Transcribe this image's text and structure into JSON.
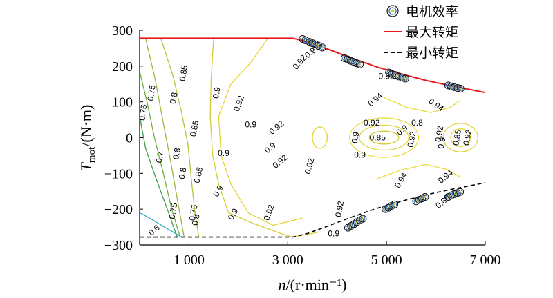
{
  "chart_data": {
    "type": "line",
    "title": "",
    "xlabel": "n/(r·min⁻¹)",
    "ylabel": "Tmot/(N·m)",
    "xlim": [
      0,
      7000
    ],
    "ylim": [
      -300,
      300
    ],
    "x_ticks": [
      {
        "value": 1000,
        "label": "1 000"
      },
      {
        "value": 3000,
        "label": "3 000"
      },
      {
        "value": 5000,
        "label": "5 000"
      },
      {
        "value": 7000,
        "label": "7 000"
      }
    ],
    "y_ticks": [
      {
        "value": 300,
        "label": "300"
      },
      {
        "value": 200,
        "label": "200"
      },
      {
        "value": 100,
        "label": "100"
      },
      {
        "value": 0,
        "label": "0"
      },
      {
        "value": -100,
        "label": "−100"
      },
      {
        "value": -200,
        "label": "−200"
      },
      {
        "value": -300,
        "label": "−300"
      }
    ],
    "legend": {
      "placement": "top-right",
      "entries": [
        {
          "label": "电机效率",
          "kind": "marker",
          "color": "#2b6fb3"
        },
        {
          "label": "最大转矩",
          "kind": "solid",
          "color": "#e8191c"
        },
        {
          "label": "最小转矩",
          "kind": "dashed",
          "color": "#000000"
        }
      ]
    },
    "max_torque": {
      "name": "最大转矩",
      "color": "#e8191c",
      "x": [
        0,
        3100,
        3400,
        3800,
        4300,
        4800,
        5300,
        5800,
        6300,
        7000
      ],
      "y": [
        278,
        278,
        268,
        248,
        222,
        198,
        178,
        160,
        145,
        126
      ]
    },
    "min_torque": {
      "name": "最小转矩",
      "color": "#000000",
      "x": [
        0,
        3100,
        3400,
        3800,
        4300,
        4800,
        5300,
        5800,
        6300,
        7000
      ],
      "y": [
        -278,
        -278,
        -268,
        -248,
        -222,
        -198,
        -178,
        -160,
        -145,
        -126
      ]
    },
    "efficiency_contours": [
      {
        "level": 0.6,
        "color": "#2ea5c8",
        "x": [
          0,
          200,
          500,
          850
        ],
        "y": [
          -210,
          -225,
          -250,
          -278
        ]
      },
      {
        "level": 0.7,
        "color": "#3c9d4f",
        "x": [
          0,
          120,
          320,
          560,
          760
        ],
        "y": [
          60,
          -30,
          -110,
          -200,
          -278
        ]
      },
      {
        "level": 0.75,
        "color": "#6fae3c",
        "x": [
          0,
          150,
          300,
          480,
          650,
          820
        ],
        "y": [
          185,
          100,
          0,
          -100,
          -200,
          -278
        ]
      },
      {
        "level": 0.8,
        "color": "#97b93a",
        "x": [
          120,
          320,
          480,
          620,
          760,
          900
        ],
        "y": [
          278,
          160,
          40,
          -60,
          -170,
          -278
        ]
      },
      {
        "level": 0.85,
        "color": "#b9c33a",
        "x": [
          430,
          680,
          850,
          980,
          1050,
          1120,
          1200
        ],
        "y": [
          278,
          170,
          70,
          -20,
          -120,
          -210,
          -278
        ]
      },
      {
        "level": 0.9,
        "color": "#d4cc33",
        "x": [
          1500,
          1450,
          1430,
          1480,
          1600,
          1800,
          2300,
          2900,
          3100,
          3600
        ],
        "y": [
          278,
          170,
          60,
          -50,
          -130,
          -210,
          -240,
          -270,
          -278,
          -265
        ]
      },
      {
        "level": 0.92,
        "color": "#e5d432",
        "x": [
          2600,
          2250,
          1850,
          1600,
          1650,
          1850,
          2200,
          2700,
          3300
        ],
        "y": [
          278,
          210,
          150,
          60,
          -50,
          -130,
          -210,
          -245,
          -225
        ]
      },
      {
        "level": 0.94,
        "color": "#ecdb38",
        "x": [
          4900,
          5400,
          5900,
          6300,
          6500
        ],
        "y": [
          115,
          85,
          70,
          85,
          105
        ]
      },
      {
        "level": 0.94,
        "color": "#ecdb38",
        "x": [
          4800,
          5300,
          5800,
          6200,
          6500
        ],
        "y": [
          -115,
          -90,
          -75,
          -88,
          -110
        ]
      }
    ],
    "efficiency_islands": [
      {
        "level": 0.85,
        "color": "#d4cc33",
        "cx": 4950,
        "cy": 0,
        "rx": 300,
        "ry": 18
      },
      {
        "level": 0.9,
        "color": "#e5d432",
        "cx": 4950,
        "cy": 0,
        "rx": 500,
        "ry": 35
      },
      {
        "level": 0.92,
        "color": "#ecdb38",
        "cx": 4950,
        "cy": 0,
        "rx": 700,
        "ry": 55
      },
      {
        "level": 0.92,
        "color": "#e5d432",
        "cx": 3650,
        "cy": 0,
        "rx": 150,
        "ry": 30
      },
      {
        "level": 0.9,
        "color": "#e5d432",
        "cx": 6500,
        "cy": 0,
        "rx": 350,
        "ry": 40
      },
      {
        "level": 0.92,
        "color": "#ecdb38",
        "cx": 6500,
        "cy": 0,
        "rx": 200,
        "ry": 25
      }
    ],
    "contour_labels": [
      {
        "text": "0.85",
        "x": 900,
        "y": 180,
        "angle": -80
      },
      {
        "text": "0.75",
        "x": 250,
        "y": 125,
        "angle": -82
      },
      {
        "text": "0.8",
        "x": 700,
        "y": 110,
        "angle": -80
      },
      {
        "text": "0.75",
        "x": 80,
        "y": 70,
        "angle": -82
      },
      {
        "text": "0.85",
        "x": 1120,
        "y": 25,
        "angle": -78
      },
      {
        "text": "0.9",
        "x": 1570,
        "y": 125,
        "angle": -80
      },
      {
        "text": "0.92",
        "x": 2020,
        "y": 95,
        "angle": -70
      },
      {
        "text": "0.9",
        "x": 2250,
        "y": 35,
        "angle": 0
      },
      {
        "text": "0.9",
        "x": 1700,
        "y": -45,
        "angle": 0
      },
      {
        "text": "0.8",
        "x": 760,
        "y": -45,
        "angle": -80
      },
      {
        "text": "0.7",
        "x": 420,
        "y": -55,
        "angle": -80
      },
      {
        "text": "0.8",
        "x": 880,
        "y": -100,
        "angle": -80
      },
      {
        "text": "0.85",
        "x": 1200,
        "y": -105,
        "angle": -78
      },
      {
        "text": "0.9",
        "x": 1600,
        "y": -150,
        "angle": -60
      },
      {
        "text": "0.9",
        "x": 1900,
        "y": -215,
        "angle": -60
      },
      {
        "text": "0.92",
        "x": 2630,
        "y": -210,
        "angle": -70
      },
      {
        "text": "0.75",
        "x": 690,
        "y": -205,
        "angle": -80
      },
      {
        "text": "0.75",
        "x": 1100,
        "y": -210,
        "angle": -80
      },
      {
        "text": "0.8",
        "x": 1150,
        "y": -230,
        "angle": -80
      },
      {
        "text": "0.6",
        "x": 300,
        "y": -260,
        "angle": -40
      },
      {
        "text": "0.92",
        "x": 3250,
        "y": 210,
        "angle": -50
      },
      {
        "text": "0.92",
        "x": 2780,
        "y": 27,
        "angle": -40
      },
      {
        "text": "0.9",
        "x": 2650,
        "y": -30,
        "angle": -40
      },
      {
        "text": "0.92",
        "x": 2850,
        "y": -68,
        "angle": -40
      },
      {
        "text": "0.92",
        "x": 3450,
        "y": -80,
        "angle": -75
      },
      {
        "text": "0.92",
        "x": 4060,
        "y": -200,
        "angle": -80
      },
      {
        "text": "0.92",
        "x": 4700,
        "y": 40,
        "angle": 0
      },
      {
        "text": "0.9",
        "x": 5320,
        "y": 20,
        "angle": -40
      },
      {
        "text": "0.85",
        "x": 4820,
        "y": -2,
        "angle": 0
      },
      {
        "text": "0.9",
        "x": 4380,
        "y": 0,
        "angle": -80
      },
      {
        "text": "0.92",
        "x": 5520,
        "y": -5,
        "angle": -80
      },
      {
        "text": "0.9",
        "x": 4460,
        "y": -50,
        "angle": 0
      },
      {
        "text": "0.94",
        "x": 4780,
        "y": 105,
        "angle": -40
      },
      {
        "text": "0.94",
        "x": 6000,
        "y": 90,
        "angle": 35
      },
      {
        "text": "0.94",
        "x": 5300,
        "y": -120,
        "angle": -60
      },
      {
        "text": "0.94",
        "x": 6200,
        "y": -110,
        "angle": -40
      },
      {
        "text": "0.92",
        "x": 6080,
        "y": 10,
        "angle": -80
      },
      {
        "text": "0.9",
        "x": 6130,
        "y": -15,
        "angle": -80
      },
      {
        "text": "0.85",
        "x": 6440,
        "y": 0,
        "angle": -80
      },
      {
        "text": "0.92",
        "x": 6650,
        "y": 0,
        "angle": -80
      },
      {
        "text": "0.9",
        "x": 3930,
        "y": -270,
        "angle": 0
      },
      {
        "text": "0.8",
        "x": 5620,
        "y": 40,
        "angle": 0
      },
      {
        "text": "0.85",
        "x": 6150,
        "y": -180,
        "angle": -40
      },
      {
        "text": "0.92",
        "x": 3500,
        "y": 240,
        "angle": -40
      },
      {
        "text": "0.92",
        "x": 5000,
        "y": 170,
        "angle": 0
      }
    ],
    "operating_points": [
      {
        "x": 3300,
        "y": 276
      },
      {
        "x": 3360,
        "y": 272
      },
      {
        "x": 3440,
        "y": 268
      },
      {
        "x": 3500,
        "y": 264
      },
      {
        "x": 3560,
        "y": 261
      },
      {
        "x": 3620,
        "y": 257
      },
      {
        "x": 3700,
        "y": 252
      },
      {
        "x": 4150,
        "y": 222
      },
      {
        "x": 4210,
        "y": 219
      },
      {
        "x": 4270,
        "y": 215
      },
      {
        "x": 4330,
        "y": 212
      },
      {
        "x": 4390,
        "y": 208
      },
      {
        "x": 4460,
        "y": 205
      },
      {
        "x": 5050,
        "y": 182
      },
      {
        "x": 5110,
        "y": 178
      },
      {
        "x": 5180,
        "y": 175
      },
      {
        "x": 5250,
        "y": 171
      },
      {
        "x": 5320,
        "y": 168
      },
      {
        "x": 5380,
        "y": 165
      },
      {
        "x": 6250,
        "y": 146
      },
      {
        "x": 6310,
        "y": 143
      },
      {
        "x": 6370,
        "y": 141
      },
      {
        "x": 6440,
        "y": 139
      },
      {
        "x": 6500,
        "y": 137
      },
      {
        "x": 4220,
        "y": -252
      },
      {
        "x": 4280,
        "y": -247
      },
      {
        "x": 4340,
        "y": -242
      },
      {
        "x": 4400,
        "y": -236
      },
      {
        "x": 4460,
        "y": -231
      },
      {
        "x": 4520,
        "y": -227
      },
      {
        "x": 4980,
        "y": -200
      },
      {
        "x": 5040,
        "y": -196
      },
      {
        "x": 5100,
        "y": -191
      },
      {
        "x": 5160,
        "y": -187
      },
      {
        "x": 5600,
        "y": -178
      },
      {
        "x": 5660,
        "y": -174
      },
      {
        "x": 5720,
        "y": -170
      },
      {
        "x": 5780,
        "y": -166
      },
      {
        "x": 6250,
        "y": -166
      },
      {
        "x": 6310,
        "y": -162
      },
      {
        "x": 6370,
        "y": -158
      },
      {
        "x": 6430,
        "y": -155
      },
      {
        "x": 6490,
        "y": -152
      }
    ]
  }
}
